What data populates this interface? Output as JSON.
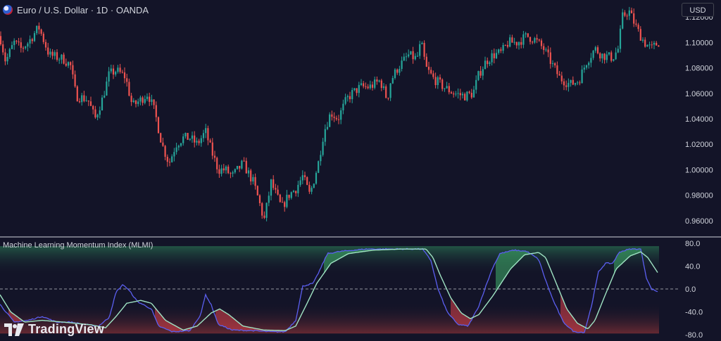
{
  "header": {
    "symbol": "Euro / U.S. Dollar · 1D · OANDA",
    "currency": "USD"
  },
  "indicator": {
    "title": "Machine Learning Momentum Index (MLMI)"
  },
  "branding": {
    "logo_text": "TradingView"
  },
  "colors": {
    "background": "#131428",
    "up_candle": "#26a69a",
    "down_candle": "#ef5350",
    "mlmi_line": "#5b5ff0",
    "signal_line": "#9fe3c3",
    "zero_line": "#9598a1",
    "upper_zone": "#1f4a3e",
    "lower_zone": "#5a2430"
  },
  "chart_data": [
    {
      "type": "candlestick",
      "title": "Euro / U.S. Dollar · 1D · OANDA",
      "ylim": [
        0.95,
        1.13
      ],
      "yticks": [
        "1.12000",
        "1.10000",
        "1.08000",
        "1.06000",
        "1.04000",
        "1.02000",
        "1.00000",
        "0.98000",
        "0.96000"
      ],
      "ytick_values": [
        1.12,
        1.1,
        1.08,
        1.06,
        1.04,
        1.02,
        1.0,
        0.98,
        0.96
      ],
      "close_path": [
        [
          0,
          1.105
        ],
        [
          8,
          1.085
        ],
        [
          20,
          1.1
        ],
        [
          30,
          1.095
        ],
        [
          40,
          1.1
        ],
        [
          55,
          1.112
        ],
        [
          70,
          1.09
        ],
        [
          90,
          1.087
        ],
        [
          100,
          1.082
        ],
        [
          108,
          1.058
        ],
        [
          125,
          1.055
        ],
        [
          135,
          1.04
        ],
        [
          145,
          1.055
        ],
        [
          155,
          1.075
        ],
        [
          165,
          1.078
        ],
        [
          178,
          1.073
        ],
        [
          188,
          1.05
        ],
        [
          200,
          1.055
        ],
        [
          210,
          1.06
        ],
        [
          220,
          1.045
        ],
        [
          230,
          1.02
        ],
        [
          240,
          1.005
        ],
        [
          250,
          1.02
        ],
        [
          260,
          1.025
        ],
        [
          270,
          1.025
        ],
        [
          280,
          1.02
        ],
        [
          292,
          1.03
        ],
        [
          300,
          1.015
        ],
        [
          310,
          1.0
        ],
        [
          320,
          1.0
        ],
        [
          330,
          0.995
        ],
        [
          345,
          1.005
        ],
        [
          360,
          0.99
        ],
        [
          368,
          0.975
        ],
        [
          375,
          0.96
        ],
        [
          385,
          0.99
        ],
        [
          400,
          0.97
        ],
        [
          410,
          0.98
        ],
        [
          420,
          0.985
        ],
        [
          430,
          0.995
        ],
        [
          440,
          0.98
        ],
        [
          452,
          1.005
        ],
        [
          460,
          1.03
        ],
        [
          470,
          1.045
        ],
        [
          480,
          1.04
        ],
        [
          492,
          1.055
        ],
        [
          500,
          1.06
        ],
        [
          512,
          1.065
        ],
        [
          525,
          1.065
        ],
        [
          540,
          1.07
        ],
        [
          550,
          1.055
        ],
        [
          555,
          1.07
        ],
        [
          565,
          1.08
        ],
        [
          580,
          1.09
        ],
        [
          592,
          1.087
        ],
        [
          598,
          1.1
        ],
        [
          605,
          1.08
        ],
        [
          615,
          1.072
        ],
        [
          630,
          1.065
        ],
        [
          645,
          1.06
        ],
        [
          660,
          1.058
        ],
        [
          672,
          1.06
        ],
        [
          680,
          1.075
        ],
        [
          690,
          1.085
        ],
        [
          700,
          1.09
        ],
        [
          712,
          1.092
        ],
        [
          722,
          1.1
        ],
        [
          735,
          1.1
        ],
        [
          748,
          1.105
        ],
        [
          760,
          1.102
        ],
        [
          772,
          1.095
        ],
        [
          782,
          1.085
        ],
        [
          795,
          1.072
        ],
        [
          810,
          1.067
        ],
        [
          822,
          1.07
        ],
        [
          833,
          1.085
        ],
        [
          845,
          1.095
        ],
        [
          855,
          1.09
        ],
        [
          870,
          1.088
        ],
        [
          878,
          1.095
        ],
        [
          884,
          1.12
        ],
        [
          893,
          1.125
        ],
        [
          905,
          1.11
        ],
        [
          915,
          1.1
        ],
        [
          925,
          1.095
        ],
        [
          935,
          1.1
        ]
      ]
    },
    {
      "type": "line",
      "title": "Machine Learning Momentum Index (MLMI)",
      "ylim": [
        -85,
        85
      ],
      "yticks": [
        "80.0",
        "40.0",
        "0.0",
        "-40.0",
        "-80.0"
      ],
      "ytick_values": [
        80,
        40,
        0,
        -40,
        -80
      ],
      "upper_band": 75,
      "lower_band": -78,
      "series": [
        {
          "role": "mlmi",
          "points": [
            [
              0,
              -27
            ],
            [
              20,
              -58
            ],
            [
              40,
              -55
            ],
            [
              60,
              -48
            ],
            [
              80,
              -58
            ],
            [
              100,
              -58
            ],
            [
              120,
              -62
            ],
            [
              140,
              -65
            ],
            [
              155,
              -50
            ],
            [
              165,
              -5
            ],
            [
              175,
              8
            ],
            [
              185,
              -5
            ],
            [
              195,
              -22
            ],
            [
              215,
              -35
            ],
            [
              225,
              -65
            ],
            [
              245,
              -75
            ],
            [
              270,
              -73
            ],
            [
              285,
              -45
            ],
            [
              292,
              -10
            ],
            [
              300,
              -28
            ],
            [
              310,
              -62
            ],
            [
              330,
              -72
            ],
            [
              360,
              -73
            ],
            [
              385,
              -75
            ],
            [
              405,
              -75
            ],
            [
              420,
              -55
            ],
            [
              430,
              5
            ],
            [
              445,
              10
            ],
            [
              455,
              35
            ],
            [
              465,
              62
            ],
            [
              485,
              66
            ],
            [
              520,
              70
            ],
            [
              560,
              70
            ],
            [
              600,
              70
            ],
            [
              612,
              50
            ],
            [
              622,
              0
            ],
            [
              635,
              -40
            ],
            [
              650,
              -62
            ],
            [
              665,
              -65
            ],
            [
              680,
              -30
            ],
            [
              690,
              5
            ],
            [
              700,
              38
            ],
            [
              710,
              62
            ],
            [
              730,
              68
            ],
            [
              748,
              66
            ],
            [
              765,
              52
            ],
            [
              775,
              15
            ],
            [
              785,
              -18
            ],
            [
              800,
              -58
            ],
            [
              815,
              -75
            ],
            [
              830,
              -76
            ],
            [
              840,
              -30
            ],
            [
              850,
              30
            ],
            [
              860,
              45
            ],
            [
              870,
              45
            ],
            [
              880,
              65
            ],
            [
              895,
              70
            ],
            [
              910,
              70
            ],
            [
              918,
              20
            ],
            [
              925,
              0
            ],
            [
              935,
              -5
            ]
          ]
        },
        {
          "role": "signal",
          "points": [
            [
              0,
              -10
            ],
            [
              15,
              -40
            ],
            [
              35,
              -58
            ],
            [
              60,
              -55
            ],
            [
              90,
              -58
            ],
            [
              130,
              -63
            ],
            [
              150,
              -68
            ],
            [
              165,
              -48
            ],
            [
              180,
              -25
            ],
            [
              200,
              -20
            ],
            [
              215,
              -25
            ],
            [
              235,
              -55
            ],
            [
              260,
              -72
            ],
            [
              280,
              -65
            ],
            [
              300,
              -42
            ],
            [
              312,
              -35
            ],
            [
              325,
              -45
            ],
            [
              345,
              -65
            ],
            [
              375,
              -72
            ],
            [
              405,
              -73
            ],
            [
              420,
              -65
            ],
            [
              435,
              -28
            ],
            [
              450,
              10
            ],
            [
              470,
              45
            ],
            [
              495,
              62
            ],
            [
              530,
              68
            ],
            [
              570,
              70
            ],
            [
              605,
              70
            ],
            [
              615,
              55
            ],
            [
              625,
              25
            ],
            [
              640,
              -15
            ],
            [
              655,
              -42
            ],
            [
              668,
              -52
            ],
            [
              680,
              -45
            ],
            [
              700,
              -12
            ],
            [
              725,
              35
            ],
            [
              745,
              60
            ],
            [
              765,
              64
            ],
            [
              775,
              55
            ],
            [
              790,
              10
            ],
            [
              805,
              -35
            ],
            [
              820,
              -60
            ],
            [
              835,
              -70
            ],
            [
              845,
              -55
            ],
            [
              858,
              -15
            ],
            [
              875,
              35
            ],
            [
              895,
              58
            ],
            [
              910,
              65
            ],
            [
              920,
              55
            ],
            [
              935,
              27
            ]
          ]
        }
      ]
    }
  ]
}
